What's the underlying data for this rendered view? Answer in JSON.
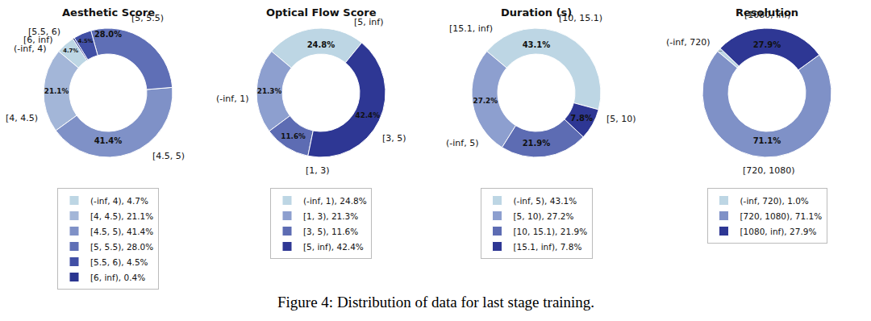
{
  "caption": "Figure 4: Distribution of data for last stage training.",
  "chart_data": [
    {
      "type": "pie",
      "title": "Aesthetic Score",
      "categories": [
        "(-inf, 4)",
        "[4, 4.5)",
        "[4.5, 5)",
        "[5, 5.5)",
        "[5.5, 6)",
        "[6, inf)"
      ],
      "values": [
        4.7,
        21.1,
        41.4,
        28.0,
        4.5,
        0.4
      ],
      "value_labels": [
        "4.7%",
        "21.1%",
        "41.4%",
        "28.0%",
        "4.5%",
        "0.4%"
      ],
      "legend_labels": [
        "(-inf, 4), 4.7%",
        "[4, 4.5), 21.1%",
        "[4.5, 5), 41.4%",
        "[5, 5.5), 28.0%",
        "[5.5, 6), 4.5%",
        "[6, inf), 0.4%"
      ],
      "colors": [
        "#bdd6e4",
        "#a3b6d8",
        "#7f91c7",
        "#5f6fb6",
        "#414fa5",
        "#2a3590"
      ],
      "data_labels": true,
      "legend": "bottom"
    },
    {
      "type": "pie",
      "title": "Optical Flow Score",
      "categories": [
        "(-inf, 1)",
        "[1, 3)",
        "[3, 5)",
        "[5, inf)"
      ],
      "values": [
        24.8,
        21.3,
        11.6,
        42.4
      ],
      "value_labels": [
        "24.8%",
        "21.3%",
        "11.6%",
        "42.4%"
      ],
      "legend_labels": [
        "(-inf, 1), 24.8%",
        "[1, 3), 21.3%",
        "[3, 5), 11.6%",
        "[5, inf), 42.4%"
      ],
      "colors": [
        "#bdd6e4",
        "#8d9fcf",
        "#5d6cb3",
        "#2e3794"
      ],
      "data_labels": true,
      "legend": "bottom"
    },
    {
      "type": "pie",
      "title": "Duration (s)",
      "categories": [
        "(-inf, 5)",
        "[5, 10)",
        "[10, 15.1)",
        "[15.1, inf)"
      ],
      "values": [
        43.1,
        27.2,
        21.9,
        7.8
      ],
      "value_labels": [
        "43.1%",
        "27.2%",
        "21.9%",
        "7.8%"
      ],
      "legend_labels": [
        "(-inf, 5), 43.1%",
        "[5, 10), 27.2%",
        "[10, 15.1), 21.9%",
        "[15.1, inf), 7.8%"
      ],
      "colors": [
        "#bdd6e4",
        "#8d9fcf",
        "#5d6cb3",
        "#2e3794"
      ],
      "data_labels": true,
      "legend": "bottom"
    },
    {
      "type": "pie",
      "title": "Resolution",
      "categories": [
        "(-inf, 720)",
        "[720, 1080)",
        "[1080, inf)"
      ],
      "values": [
        1.0,
        71.1,
        27.9
      ],
      "value_labels": [
        "1.0%",
        "71.1%",
        "27.9%"
      ],
      "legend_labels": [
        "(-inf, 720), 1.0%",
        "[720, 1080), 71.1%",
        "[1080, inf), 27.9%"
      ],
      "colors": [
        "#bdd6e4",
        "#7f91c7",
        "#2e3794"
      ],
      "data_labels": true,
      "legend": "bottom"
    }
  ]
}
